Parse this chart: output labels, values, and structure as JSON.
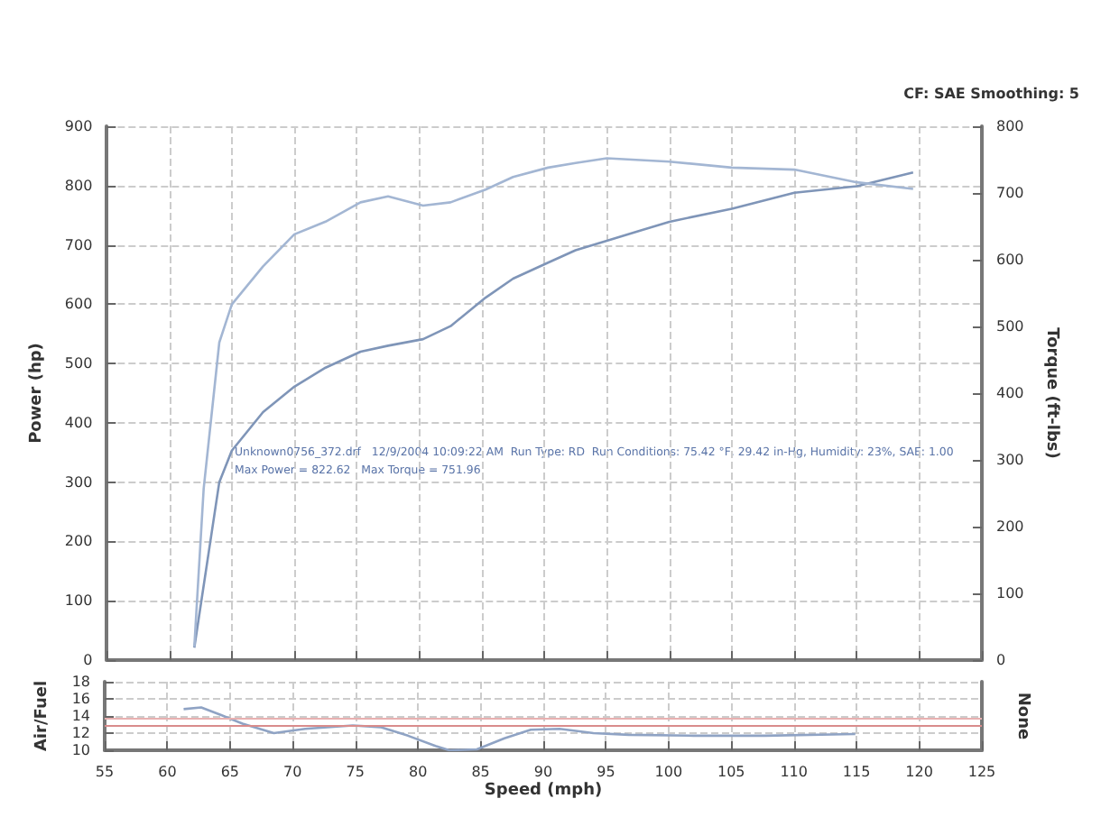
{
  "chart_data": [
    {
      "type": "line",
      "ylabel": "Power (hp)",
      "y2label": "Torque (ft-lbs)",
      "annotations": [
        "CF: SAE Smoothing: 5",
        "Unknown0756_372.drf   12/9/2004 10:09:22 AM  Run Type: RD  Run Conditions: 75.42 °F, 29.42 in-Hg, Humidity: 23%, SAE: 1.00",
        "Max Power = 822.62   Max Torque = 751.96"
      ],
      "xlim": [
        55,
        125
      ],
      "xticks": [
        55,
        60,
        65,
        70,
        75,
        80,
        85,
        90,
        95,
        100,
        105,
        110,
        115,
        120,
        125
      ],
      "ylim": [
        0,
        900
      ],
      "yticks": [
        0,
        100,
        200,
        300,
        400,
        500,
        600,
        700,
        800,
        900
      ],
      "y2lim": [
        0,
        800
      ],
      "y2ticks": [
        0,
        100,
        200,
        300,
        400,
        500,
        600,
        700,
        800
      ],
      "tick_labels": "y",
      "grid": true,
      "marker": "none",
      "line_style": "solid",
      "series": [
        {
          "color": "#7f95b8",
          "x": [
            62,
            64,
            65,
            67.5,
            70,
            72.5,
            75.3,
            77.5,
            80.3,
            82.5,
            85.3,
            87.5,
            90.3,
            92.5,
            95,
            100,
            105,
            110,
            115,
            119.5
          ],
          "values": [
            21,
            300,
            353,
            418,
            461,
            493,
            520,
            530,
            541,
            563,
            611,
            643,
            670,
            691,
            707,
            739,
            761,
            788,
            799,
            822
          ]
        },
        {
          "color": "#a3b6d3",
          "axis": "y2",
          "x": [
            62,
            62.75,
            64,
            65,
            67.5,
            70,
            72.5,
            75.3,
            77.5,
            80.3,
            82.5,
            85.3,
            87.5,
            90.3,
            92.5,
            95,
            100,
            105,
            110,
            115,
            119.5
          ],
          "values": [
            20,
            257,
            476,
            533,
            590,
            638,
            657,
            686,
            695,
            681,
            686,
            705,
            724,
            738,
            745,
            752,
            747,
            738,
            735,
            716,
            706
          ]
        }
      ]
    },
    {
      "type": "line",
      "xlabel": "Speed (mph)",
      "ylabel": "Air/Fuel",
      "y2label": "None",
      "xlim": [
        55,
        125
      ],
      "xticks": [
        55,
        60,
        65,
        70,
        75,
        80,
        85,
        90,
        95,
        100,
        105,
        110,
        115,
        120,
        125
      ],
      "ylim": [
        10,
        18
      ],
      "yticks": [
        10,
        12,
        14,
        16,
        18
      ],
      "grid": true,
      "marker": "none",
      "line_style": "solid",
      "ref_lines": [
        {
          "axis": "y",
          "value": 13.7,
          "color": "#e8b0b0"
        },
        {
          "axis": "y",
          "value": 12.9,
          "color": "#d98c8c"
        }
      ],
      "series": [
        {
          "color": "#8fa3c4",
          "x": [
            61.3,
            62.7,
            64.3,
            66,
            68.5,
            71,
            74.8,
            77,
            79.2,
            81.4,
            82.5,
            84.7,
            86.9,
            89,
            91.3,
            94,
            96.8,
            102,
            107.7,
            114.9
          ],
          "values": [
            14.8,
            15.0,
            14.1,
            13.1,
            12.0,
            12.5,
            12.9,
            12.7,
            11.7,
            10.5,
            10.0,
            10.1,
            11.4,
            12.4,
            12.5,
            12.0,
            11.8,
            11.7,
            11.7,
            11.9
          ]
        }
      ]
    }
  ]
}
